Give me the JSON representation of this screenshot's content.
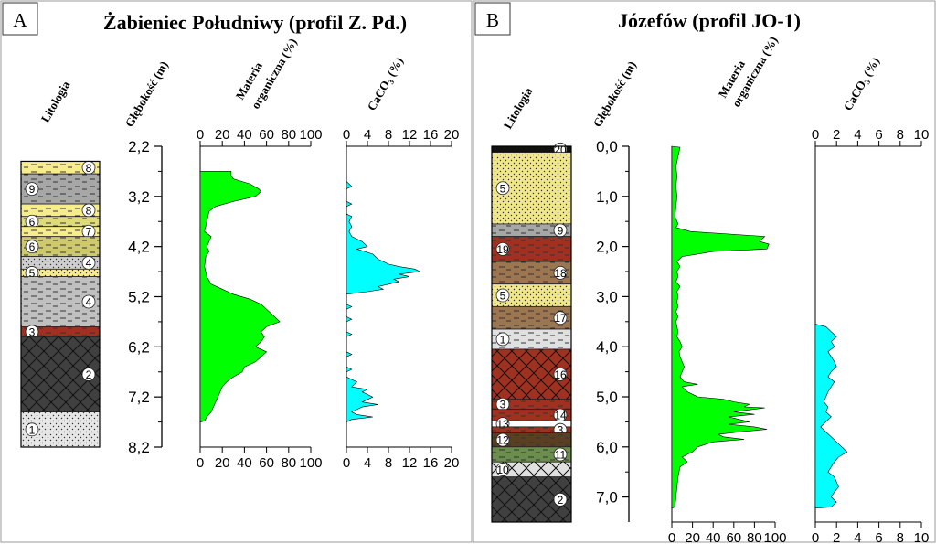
{
  "panels": [
    {
      "letter": "A",
      "title": "Żabieniec Południwy (profil Z. Pd.)",
      "headers": {
        "lithology": "Litologia",
        "depth": "Głębokość (m)",
        "om_line1": "Materia",
        "om_line2": "organiczna (%)",
        "caco3_pre": "CaCO",
        "caco3_sub": "3",
        "caco3_post": " (%)"
      }
    },
    {
      "letter": "B",
      "title": "Józefów (profil JO-1)",
      "headers": {
        "lithology": "Litologia",
        "depth": "Głębokość (m)",
        "om_line1": "Materia",
        "om_line2": "organiczna (%)",
        "caco3_pre": "CaCO",
        "caco3_sub": "3",
        "caco3_post": " (%)"
      }
    }
  ],
  "chart_data": [
    {
      "type": "area",
      "panel": "A",
      "variable": "Materia organiczna (%)",
      "depth_axis": {
        "range": [
          2.2,
          8.2
        ],
        "ticks": [
          "2,2",
          "3,2",
          "4,2",
          "5,2",
          "6,2",
          "7,2",
          "8,2"
        ],
        "reversed": true
      },
      "x_axis": {
        "range": [
          0,
          100
        ],
        "ticks": [
          "0",
          "20",
          "40",
          "60",
          "80",
          "100"
        ],
        "position": "top-and-bottom"
      },
      "color": "#00ff00",
      "points": [
        [
          2.7,
          0
        ],
        [
          2.7,
          28
        ],
        [
          2.78,
          28
        ],
        [
          2.85,
          30
        ],
        [
          2.95,
          45
        ],
        [
          3.05,
          53
        ],
        [
          3.1,
          55
        ],
        [
          3.2,
          50
        ],
        [
          3.3,
          30
        ],
        [
          3.4,
          14
        ],
        [
          3.5,
          8
        ],
        [
          3.7,
          6
        ],
        [
          3.9,
          4
        ],
        [
          4.0,
          10
        ],
        [
          4.1,
          8
        ],
        [
          4.2,
          6
        ],
        [
          4.3,
          8
        ],
        [
          4.4,
          5
        ],
        [
          4.6,
          4
        ],
        [
          4.8,
          6
        ],
        [
          4.95,
          10
        ],
        [
          5.05,
          20
        ],
        [
          5.15,
          30
        ],
        [
          5.25,
          45
        ],
        [
          5.35,
          55
        ],
        [
          5.45,
          60
        ],
        [
          5.55,
          65
        ],
        [
          5.7,
          72
        ],
        [
          5.8,
          60
        ],
        [
          5.9,
          55
        ],
        [
          6.0,
          58
        ],
        [
          6.1,
          55
        ],
        [
          6.2,
          50
        ],
        [
          6.3,
          60
        ],
        [
          6.4,
          55
        ],
        [
          6.5,
          50
        ],
        [
          6.6,
          40
        ],
        [
          6.7,
          38
        ],
        [
          6.8,
          30
        ],
        [
          6.9,
          24
        ],
        [
          7.0,
          20
        ],
        [
          7.1,
          18
        ],
        [
          7.2,
          16
        ],
        [
          7.3,
          14
        ],
        [
          7.4,
          12
        ],
        [
          7.5,
          10
        ],
        [
          7.6,
          6
        ],
        [
          7.68,
          4
        ],
        [
          7.7,
          0
        ]
      ]
    },
    {
      "type": "area",
      "panel": "A",
      "variable": "CaCO3 (%)",
      "depth_axis": {
        "range": [
          2.2,
          8.2
        ],
        "reversed": true
      },
      "x_axis": {
        "range": [
          0,
          20
        ],
        "ticks": [
          "0",
          "4",
          "8",
          "12",
          "16",
          "20"
        ],
        "position": "top-and-bottom"
      },
      "color": "#00ffff",
      "points": [
        [
          2.9,
          0
        ],
        [
          3.0,
          1
        ],
        [
          3.05,
          0
        ],
        [
          3.3,
          0
        ],
        [
          3.35,
          1
        ],
        [
          3.4,
          0
        ],
        [
          3.55,
          0
        ],
        [
          3.6,
          1
        ],
        [
          3.7,
          0.5
        ],
        [
          3.8,
          1
        ],
        [
          3.9,
          0.5
        ],
        [
          4.0,
          1
        ],
        [
          4.1,
          3
        ],
        [
          4.2,
          4
        ],
        [
          4.25,
          2
        ],
        [
          4.35,
          5
        ],
        [
          4.45,
          6
        ],
        [
          4.55,
          8
        ],
        [
          4.6,
          10
        ],
        [
          4.65,
          13
        ],
        [
          4.7,
          14
        ],
        [
          4.75,
          10
        ],
        [
          4.8,
          12
        ],
        [
          4.85,
          9
        ],
        [
          4.9,
          10
        ],
        [
          4.95,
          8
        ],
        [
          5.0,
          6
        ],
        [
          5.05,
          7
        ],
        [
          5.1,
          4
        ],
        [
          5.15,
          0
        ],
        [
          5.35,
          0
        ],
        [
          5.4,
          1
        ],
        [
          5.45,
          0
        ],
        [
          5.6,
          0
        ],
        [
          5.65,
          1
        ],
        [
          5.7,
          0
        ],
        [
          5.9,
          0
        ],
        [
          5.95,
          1
        ],
        [
          6.0,
          0
        ],
        [
          6.3,
          0
        ],
        [
          6.35,
          1
        ],
        [
          6.4,
          0
        ],
        [
          6.6,
          0
        ],
        [
          6.65,
          1
        ],
        [
          6.7,
          0
        ],
        [
          6.8,
          0
        ],
        [
          6.9,
          2
        ],
        [
          7.0,
          1
        ],
        [
          7.05,
          4
        ],
        [
          7.1,
          3
        ],
        [
          7.2,
          5
        ],
        [
          7.3,
          3
        ],
        [
          7.35,
          6
        ],
        [
          7.4,
          3
        ],
        [
          7.45,
          2
        ],
        [
          7.5,
          1
        ],
        [
          7.55,
          2
        ],
        [
          7.6,
          5
        ],
        [
          7.65,
          1
        ],
        [
          7.7,
          0
        ]
      ]
    },
    {
      "type": "area",
      "panel": "B",
      "variable": "Materia organiczna (%)",
      "depth_axis": {
        "range": [
          0,
          7.5
        ],
        "ticks": [
          "0,0",
          "1,0",
          "2,0",
          "3,0",
          "4,0",
          "5,0",
          "6,0",
          "7,0"
        ],
        "reversed": true
      },
      "x_axis": {
        "range": [
          0,
          100
        ],
        "ticks": [
          "0",
          "20",
          "40",
          "60",
          "80",
          "100"
        ],
        "position": "bottom"
      },
      "color": "#00ff00",
      "points": [
        [
          0,
          0
        ],
        [
          0.02,
          8
        ],
        [
          0.2,
          6
        ],
        [
          0.4,
          4
        ],
        [
          0.6,
          5
        ],
        [
          0.8,
          4
        ],
        [
          1.0,
          5
        ],
        [
          1.2,
          4
        ],
        [
          1.4,
          3
        ],
        [
          1.55,
          6
        ],
        [
          1.62,
          4
        ],
        [
          1.7,
          18
        ],
        [
          1.8,
          90
        ],
        [
          1.9,
          85
        ],
        [
          1.95,
          94
        ],
        [
          2.05,
          92
        ],
        [
          2.1,
          40
        ],
        [
          2.2,
          10
        ],
        [
          2.3,
          5
        ],
        [
          2.4,
          8
        ],
        [
          2.5,
          5
        ],
        [
          2.6,
          6
        ],
        [
          2.7,
          4
        ],
        [
          2.8,
          8
        ],
        [
          2.9,
          5
        ],
        [
          3.0,
          6
        ],
        [
          3.1,
          5
        ],
        [
          3.2,
          6
        ],
        [
          3.3,
          4
        ],
        [
          3.4,
          6
        ],
        [
          3.5,
          4
        ],
        [
          3.6,
          5
        ],
        [
          3.7,
          6
        ],
        [
          3.8,
          5
        ],
        [
          3.9,
          8
        ],
        [
          4.0,
          10
        ],
        [
          4.1,
          7
        ],
        [
          4.2,
          8
        ],
        [
          4.3,
          10
        ],
        [
          4.4,
          12
        ],
        [
          4.5,
          10
        ],
        [
          4.6,
          8
        ],
        [
          4.7,
          12
        ],
        [
          4.75,
          25
        ],
        [
          4.8,
          10
        ],
        [
          4.9,
          15
        ],
        [
          5.0,
          25
        ],
        [
          5.05,
          50
        ],
        [
          5.1,
          60
        ],
        [
          5.15,
          75
        ],
        [
          5.2,
          70
        ],
        [
          5.22,
          90
        ],
        [
          5.3,
          60
        ],
        [
          5.35,
          80
        ],
        [
          5.4,
          55
        ],
        [
          5.5,
          75
        ],
        [
          5.55,
          55
        ],
        [
          5.6,
          80
        ],
        [
          5.65,
          92
        ],
        [
          5.7,
          65
        ],
        [
          5.75,
          45
        ],
        [
          5.8,
          50
        ],
        [
          5.85,
          70
        ],
        [
          5.9,
          40
        ],
        [
          6.0,
          25
        ],
        [
          6.1,
          20
        ],
        [
          6.2,
          10
        ],
        [
          6.3,
          15
        ],
        [
          6.4,
          8
        ],
        [
          6.6,
          6
        ],
        [
          6.8,
          5
        ],
        [
          7.0,
          4
        ],
        [
          7.2,
          3
        ],
        [
          7.22,
          0
        ]
      ]
    },
    {
      "type": "area",
      "panel": "B",
      "variable": "CaCO3 (%)",
      "depth_axis": {
        "range": [
          0,
          7.5
        ],
        "reversed": true
      },
      "x_axis": {
        "range": [
          0,
          10
        ],
        "ticks": [
          "0",
          "2",
          "4",
          "6",
          "8",
          "10"
        ],
        "position": "top-and-bottom"
      },
      "color": "#00ffff",
      "points": [
        [
          3.55,
          0
        ],
        [
          3.6,
          1
        ],
        [
          3.7,
          1.5
        ],
        [
          3.8,
          2
        ],
        [
          3.9,
          1.5
        ],
        [
          4.0,
          1.8
        ],
        [
          4.1,
          1.2
        ],
        [
          4.2,
          1.5
        ],
        [
          4.3,
          1.8
        ],
        [
          4.4,
          2
        ],
        [
          4.5,
          1.5
        ],
        [
          4.6,
          1.2
        ],
        [
          4.7,
          1.8
        ],
        [
          4.8,
          1.5
        ],
        [
          4.9,
          1.2
        ],
        [
          5.0,
          1.0
        ],
        [
          5.1,
          0.8
        ],
        [
          5.2,
          1.2
        ],
        [
          5.3,
          1.0
        ],
        [
          5.4,
          1.5
        ],
        [
          5.5,
          1.0
        ],
        [
          5.6,
          0.5
        ],
        [
          5.7,
          1.0
        ],
        [
          5.8,
          1.5
        ],
        [
          5.9,
          2.0
        ],
        [
          6.0,
          2.5
        ],
        [
          6.1,
          3.0
        ],
        [
          6.2,
          2.2
        ],
        [
          6.3,
          1.8
        ],
        [
          6.4,
          1.5
        ],
        [
          6.5,
          1.2
        ],
        [
          6.6,
          1.8
        ],
        [
          6.7,
          2.0
        ],
        [
          6.8,
          2.2
        ],
        [
          6.9,
          1.8
        ],
        [
          7.0,
          1.5
        ],
        [
          7.1,
          2.0
        ],
        [
          7.2,
          1.5
        ],
        [
          7.22,
          0
        ]
      ]
    }
  ],
  "lithology": [
    {
      "panel": "A",
      "range": [
        2.2,
        8.2
      ],
      "layers": [
        {
          "top": 2.5,
          "bottom": 2.75,
          "fill": "#f7ec8b",
          "pattern": "dash",
          "label": "8"
        },
        {
          "top": 2.75,
          "bottom": 3.35,
          "fill": "#a7a7a7",
          "pattern": "dash",
          "label": "9"
        },
        {
          "top": 3.35,
          "bottom": 3.6,
          "fill": "#f7ec8b",
          "pattern": "dash",
          "label": "8"
        },
        {
          "top": 3.6,
          "bottom": 3.8,
          "fill": "#dedc7a",
          "pattern": "dash",
          "label": "6"
        },
        {
          "top": 3.8,
          "bottom": 4.0,
          "fill": "#f7ec8b",
          "pattern": "dash",
          "label": "7"
        },
        {
          "top": 4.0,
          "bottom": 4.4,
          "fill": "#cfc96e",
          "pattern": "dash",
          "label": "6"
        },
        {
          "top": 4.4,
          "bottom": 4.65,
          "fill": "#cfcfcf",
          "pattern": "dot",
          "label": "4"
        },
        {
          "top": 4.65,
          "bottom": 4.8,
          "fill": "#f7ec8b",
          "pattern": "dot",
          "label": "5"
        },
        {
          "top": 4.8,
          "bottom": 5.8,
          "fill": "#c0c0c0",
          "pattern": "dash",
          "label": "4"
        },
        {
          "top": 5.8,
          "bottom": 6.0,
          "fill": "#a03020",
          "pattern": "dash",
          "label": "3"
        },
        {
          "top": 6.0,
          "bottom": 7.5,
          "fill": "#404040",
          "pattern": "cross",
          "label": "2"
        },
        {
          "top": 7.5,
          "bottom": 8.2,
          "fill": "#e6e6e6",
          "pattern": "dot",
          "label": "1"
        }
      ]
    },
    {
      "panel": "B",
      "range": [
        0,
        7.5
      ],
      "layers": [
        {
          "top": 0.0,
          "bottom": 0.12,
          "fill": "#101010",
          "pattern": "none",
          "label": "20"
        },
        {
          "top": 0.12,
          "bottom": 1.55,
          "fill": "#f0e68c",
          "pattern": "dot",
          "label": "5"
        },
        {
          "top": 1.55,
          "bottom": 1.8,
          "fill": "#a7a7a7",
          "pattern": "dash",
          "label": "9"
        },
        {
          "top": 1.8,
          "bottom": 2.3,
          "fill": "#a03020",
          "pattern": "dash",
          "label": "19"
        },
        {
          "top": 2.3,
          "bottom": 2.75,
          "fill": "#9c7650",
          "pattern": "dash",
          "label": "18"
        },
        {
          "top": 2.75,
          "bottom": 3.2,
          "fill": "#f0e68c",
          "pattern": "dot",
          "label": "5"
        },
        {
          "top": 3.2,
          "bottom": 3.65,
          "fill": "#9c7650",
          "pattern": "dash",
          "label": "17"
        },
        {
          "top": 3.65,
          "bottom": 4.05,
          "fill": "#e0e0e0",
          "pattern": "dash",
          "label": "1"
        },
        {
          "top": 4.05,
          "bottom": 5.05,
          "fill": "#a03020",
          "pattern": "cross",
          "label": "16"
        },
        {
          "top": 5.05,
          "bottom": 5.25,
          "fill": "#a03020",
          "pattern": "dash",
          "label": "3"
        },
        {
          "top": 5.25,
          "bottom": 5.48,
          "fill": "#a03020",
          "pattern": "dash",
          "label": "14"
        },
        {
          "top": 5.48,
          "bottom": 5.6,
          "fill": "#ffffff",
          "pattern": "none",
          "label": "13"
        },
        {
          "top": 5.6,
          "bottom": 5.72,
          "fill": "#a03020",
          "pattern": "dash",
          "label": "3"
        },
        {
          "top": 5.72,
          "bottom": 6.0,
          "fill": "#5a4020",
          "pattern": "dash",
          "label": "12"
        },
        {
          "top": 6.0,
          "bottom": 6.3,
          "fill": "#6b8e4e",
          "pattern": "dash",
          "label": "11"
        },
        {
          "top": 6.3,
          "bottom": 6.6,
          "fill": "#e0e0e0",
          "pattern": "cross",
          "label": "10"
        },
        {
          "top": 6.6,
          "bottom": 7.5,
          "fill": "#404040",
          "pattern": "cross",
          "label": "2"
        }
      ]
    }
  ]
}
